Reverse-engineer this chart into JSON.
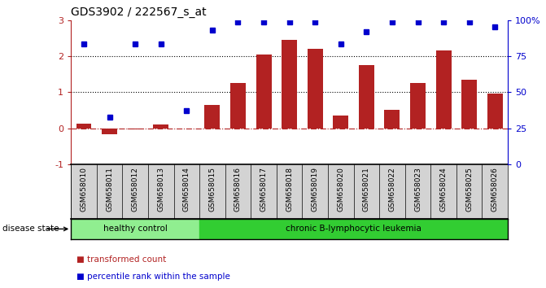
{
  "title": "GDS3902 / 222567_s_at",
  "samples": [
    "GSM658010",
    "GSM658011",
    "GSM658012",
    "GSM658013",
    "GSM658014",
    "GSM658015",
    "GSM658016",
    "GSM658017",
    "GSM658018",
    "GSM658019",
    "GSM658020",
    "GSM658021",
    "GSM658022",
    "GSM658023",
    "GSM658024",
    "GSM658025",
    "GSM658026"
  ],
  "bar_values": [
    0.13,
    -0.18,
    -0.03,
    0.1,
    -0.02,
    0.65,
    1.25,
    2.05,
    2.45,
    2.2,
    0.35,
    1.75,
    0.52,
    1.25,
    2.15,
    1.35,
    0.95
  ],
  "dot_values": [
    2.35,
    0.3,
    2.35,
    2.35,
    0.48,
    2.72,
    2.94,
    2.94,
    2.94,
    2.94,
    2.35,
    2.67,
    2.94,
    2.94,
    2.94,
    2.94,
    2.82
  ],
  "bar_color": "#b22222",
  "dot_color": "#0000cd",
  "left_ylim": [
    -1,
    3
  ],
  "left_yticks": [
    -1,
    0,
    1,
    2,
    3
  ],
  "right_yticks": [
    0,
    25,
    50,
    75,
    100
  ],
  "right_yticklabels": [
    "0",
    "25",
    "50",
    "75",
    "100%"
  ],
  "healthy_count": 5,
  "healthy_label": "healthy control",
  "leukemia_label": "chronic B-lymphocytic leukemia",
  "healthy_color": "#90ee90",
  "leukemia_color": "#32cd32",
  "disease_state_label": "disease state",
  "legend_bar_label": "transformed count",
  "legend_dot_label": "percentile rank within the sample",
  "background_color": "#ffffff",
  "label_area_color": "#d3d3d3"
}
